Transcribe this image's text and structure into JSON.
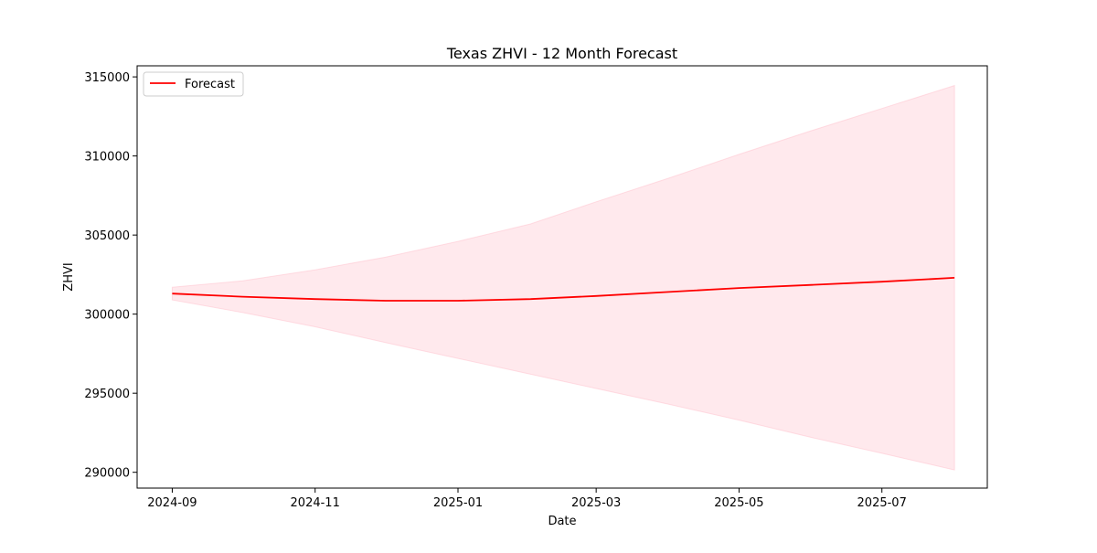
{
  "chart_data": {
    "type": "line",
    "title": "Texas ZHVI - 12 Month Forecast",
    "xlabel": "Date",
    "ylabel": "ZHVI",
    "ylim": [
      289000,
      315700
    ],
    "xlim": [
      "2024-08-17",
      "2025-08-15"
    ],
    "x_ticks": [
      "2024-09",
      "2024-11",
      "2025-01",
      "2025-03",
      "2025-05",
      "2025-07"
    ],
    "y_ticks": [
      290000,
      295000,
      300000,
      305000,
      310000,
      315000
    ],
    "legend": {
      "position": "top-left",
      "entries": [
        "Forecast"
      ]
    },
    "grid": false,
    "colors": {
      "line": "#ff0000",
      "band": "#ffc0cb"
    },
    "series": [
      {
        "name": "Forecast",
        "x": [
          "2024-09-01",
          "2024-10-01",
          "2024-11-01",
          "2024-12-01",
          "2025-01-01",
          "2025-02-01",
          "2025-03-01",
          "2025-04-01",
          "2025-05-01",
          "2025-06-01",
          "2025-07-01",
          "2025-08-01"
        ],
        "values": [
          301300,
          301100,
          300950,
          300850,
          300850,
          300950,
          301150,
          301400,
          301650,
          301850,
          302050,
          302300
        ],
        "lower": [
          300900,
          300100,
          299200,
          298200,
          297200,
          296200,
          295300,
          294300,
          293300,
          292200,
          291200,
          290150
        ],
        "upper": [
          301700,
          302100,
          302800,
          303600,
          304600,
          305700,
          307100,
          308600,
          310100,
          311600,
          313000,
          314450
        ]
      }
    ]
  }
}
